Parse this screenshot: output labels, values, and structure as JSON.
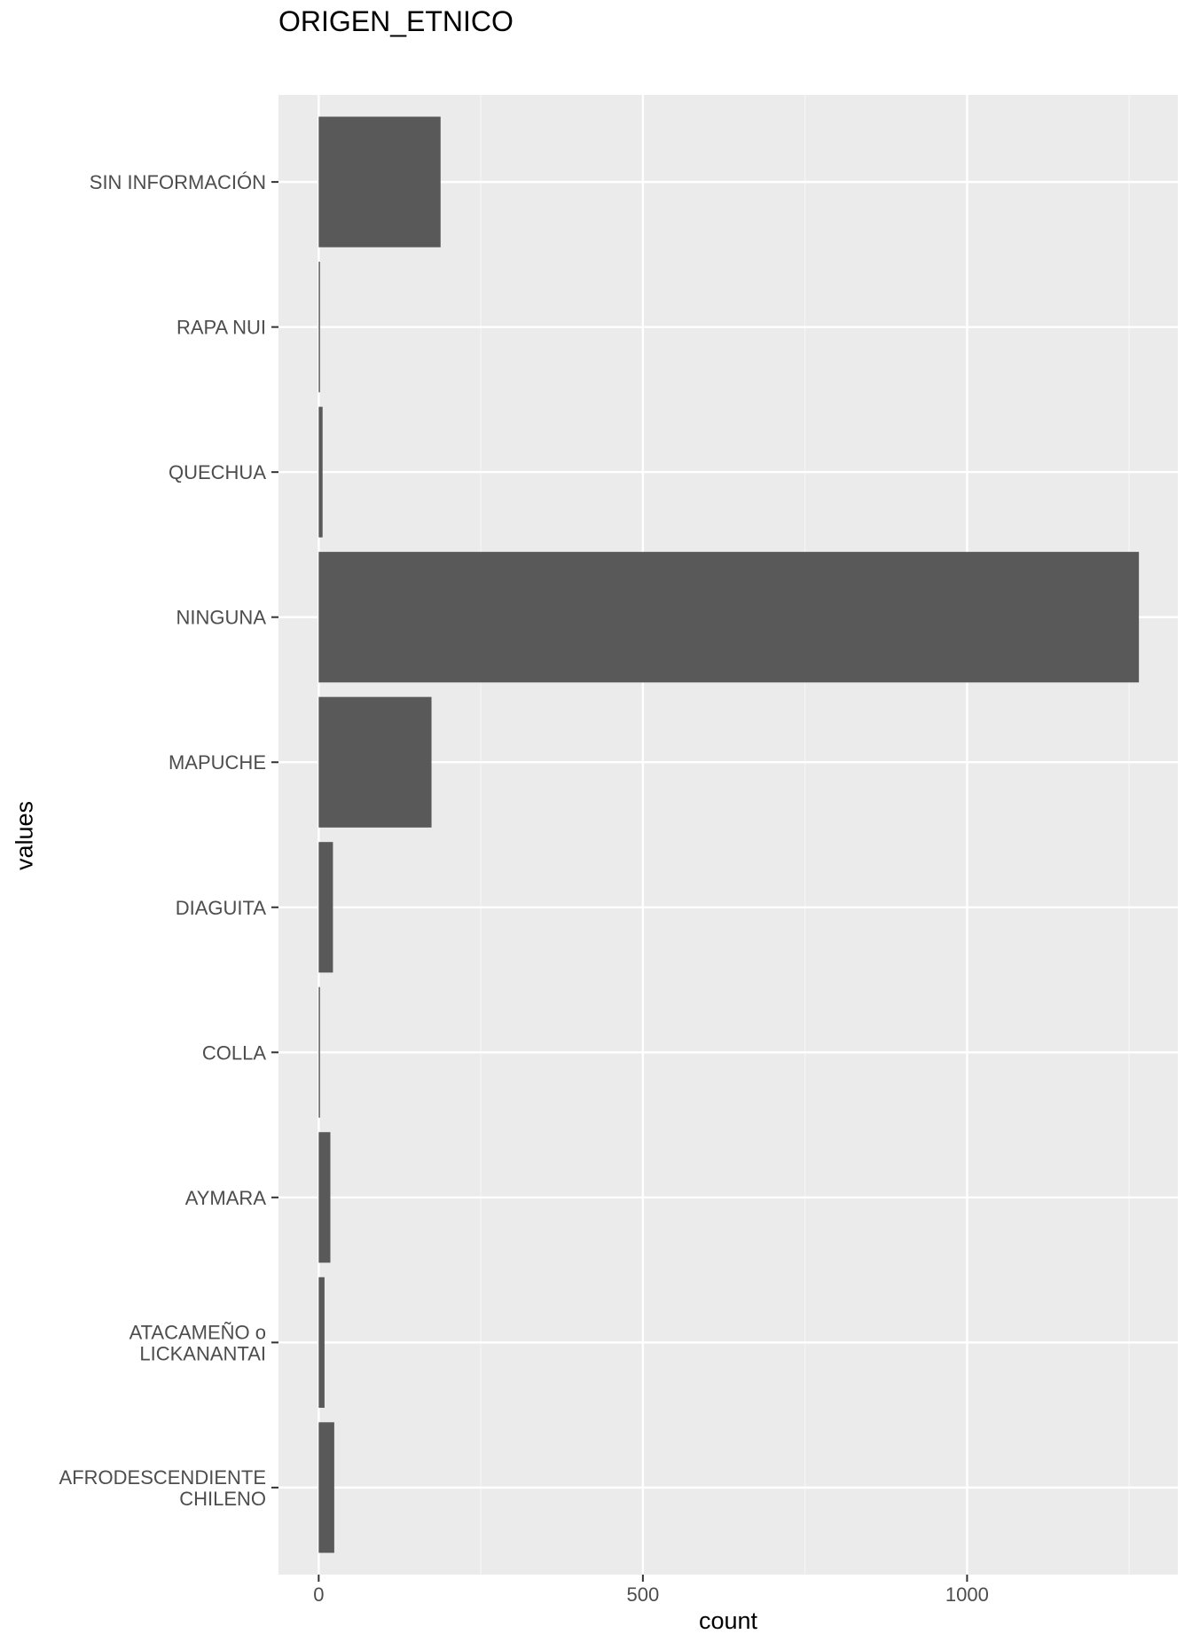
{
  "chart_data": {
    "type": "bar",
    "orientation": "horizontal",
    "title": "ORIGEN_ETNICO",
    "xlabel": "count",
    "ylabel": "values",
    "categories": [
      "SIN INFORMACIÓN",
      "RAPA NUI",
      "QUECHUA",
      "NINGUNA",
      "MAPUCHE",
      "DIAGUITA",
      "COLLA",
      "AYMARA",
      "ATACAMEÑO o LICKANANTAI",
      "AFRODESCENDIENTE CHILENO"
    ],
    "category_labels": [
      [
        "SIN INFORMACIÓN"
      ],
      [
        "RAPA NUI"
      ],
      [
        "QUECHUA"
      ],
      [
        "NINGUNA"
      ],
      [
        "MAPUCHE"
      ],
      [
        "DIAGUITA"
      ],
      [
        "COLLA"
      ],
      [
        "AYMARA"
      ],
      [
        "ATACAMEÑO o",
        "LICKANANTAI"
      ],
      [
        "AFRODESCENDIENTE",
        "CHILENO"
      ]
    ],
    "values": [
      188,
      2,
      6,
      1265,
      174,
      22,
      2,
      18,
      9,
      24
    ],
    "xlim": [
      -62,
      1325
    ],
    "x_ticks": [
      0,
      500,
      1000
    ],
    "x_minor_ticks": [
      250,
      750,
      1250
    ],
    "grid": true,
    "colors": {
      "bar": "#595959",
      "panel_background": "#ebebeb",
      "grid_major": "#ffffff",
      "grid_minor": "#f5f5f5",
      "tick_text": "#4d4d4d",
      "axis_text": "#000000"
    }
  }
}
